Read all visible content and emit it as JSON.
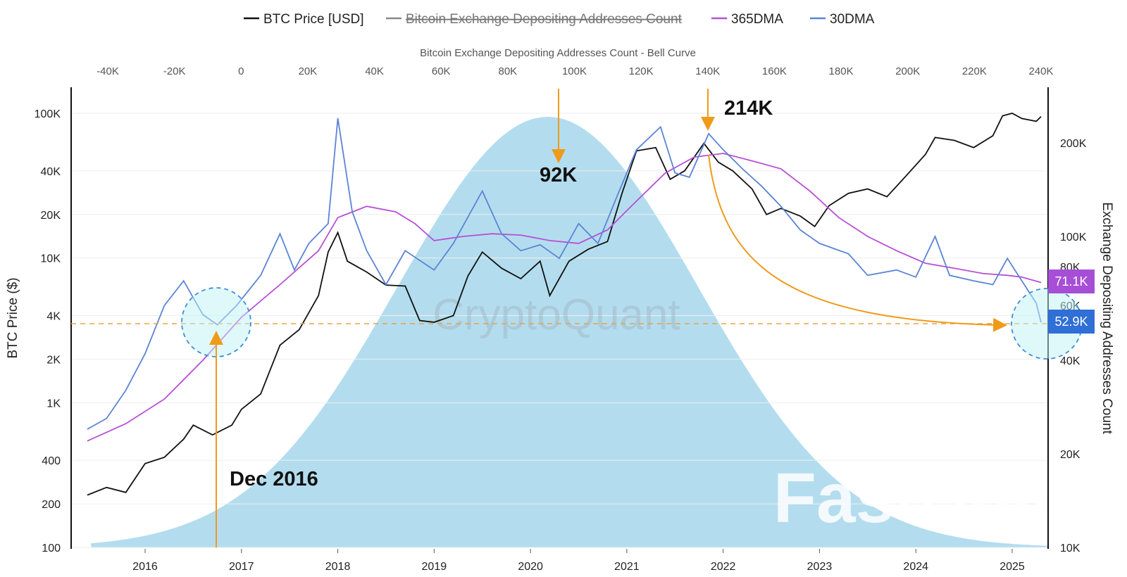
{
  "legend": [
    {
      "label": "BTC Price [USD]",
      "color": "#111111",
      "struck": false
    },
    {
      "label": "Bitcoin Exchange Depositing Addresses Count",
      "color": "#888888",
      "struck": true
    },
    {
      "label": "365DMA",
      "color": "#b84fd6",
      "struck": false
    },
    {
      "label": "30DMA",
      "color": "#5b84d6",
      "struck": false
    }
  ],
  "top_axis_title": "Bitcoin Exchange Depositing Addresses Count - Bell Curve",
  "top_ticks": [
    "-40K",
    "-20K",
    "0",
    "20K",
    "40K",
    "60K",
    "80K",
    "100K",
    "120K",
    "140K",
    "160K",
    "180K",
    "200K",
    "220K",
    "240K"
  ],
  "left_axis_title": "BTC Price ($)",
  "right_axis_title": "Exchange Depositing Addresses Count",
  "left_ticks": [
    "100K",
    "40K",
    "20K",
    "10K",
    "4K",
    "2K",
    "1K",
    "400",
    "200",
    "100"
  ],
  "right_ticks": [
    "200K",
    "100K",
    "80K",
    "60K",
    "40K",
    "20K",
    "10K"
  ],
  "bottom_ticks": [
    "2016",
    "2017",
    "2018",
    "2019",
    "2020",
    "2021",
    "2022",
    "2023",
    "2024",
    "2025"
  ],
  "annotations": {
    "peak_2021": "214K",
    "peak_mid": "92K",
    "dec_2016": "Dec 2016"
  },
  "badges": {
    "dma365": {
      "text": "71.1K",
      "color": "#a64fd6"
    },
    "dma30": {
      "text": "52.9K",
      "color": "#2f6fd6"
    }
  },
  "watermarks": {
    "center": "CryptoQuant",
    "corner": "FastBull"
  },
  "chart_data": {
    "type": "line",
    "x_range": [
      2015.35,
      2025.3
    ],
    "y_left_scale": "log",
    "y_left_range": [
      100,
      120000
    ],
    "y_right_scale": "log",
    "y_right_range": [
      10000,
      250000
    ],
    "grid": true,
    "legend_position": "top",
    "series": [
      {
        "name": "BTC Price [USD]",
        "axis": "left",
        "color": "#111111",
        "points": [
          [
            2015.4,
            230
          ],
          [
            2015.6,
            260
          ],
          [
            2015.8,
            240
          ],
          [
            2016.0,
            380
          ],
          [
            2016.2,
            420
          ],
          [
            2016.4,
            560
          ],
          [
            2016.5,
            700
          ],
          [
            2016.7,
            600
          ],
          [
            2016.9,
            700
          ],
          [
            2017.0,
            900
          ],
          [
            2017.2,
            1150
          ],
          [
            2017.4,
            2500
          ],
          [
            2017.6,
            3200
          ],
          [
            2017.8,
            5500
          ],
          [
            2017.9,
            11000
          ],
          [
            2018.0,
            15000
          ],
          [
            2018.1,
            9500
          ],
          [
            2018.3,
            8000
          ],
          [
            2018.5,
            6500
          ],
          [
            2018.7,
            6400
          ],
          [
            2018.85,
            3700
          ],
          [
            2019.0,
            3600
          ],
          [
            2019.2,
            4000
          ],
          [
            2019.35,
            7500
          ],
          [
            2019.5,
            11000
          ],
          [
            2019.7,
            8500
          ],
          [
            2019.9,
            7200
          ],
          [
            2020.1,
            9500
          ],
          [
            2020.2,
            5500
          ],
          [
            2020.4,
            9500
          ],
          [
            2020.6,
            11500
          ],
          [
            2020.8,
            13000
          ],
          [
            2020.95,
            28000
          ],
          [
            2021.1,
            55000
          ],
          [
            2021.3,
            58000
          ],
          [
            2021.45,
            35000
          ],
          [
            2021.6,
            40000
          ],
          [
            2021.8,
            62000
          ],
          [
            2021.95,
            46000
          ],
          [
            2022.1,
            40000
          ],
          [
            2022.3,
            30000
          ],
          [
            2022.45,
            20000
          ],
          [
            2022.6,
            22000
          ],
          [
            2022.8,
            19500
          ],
          [
            2022.95,
            16500
          ],
          [
            2023.1,
            23000
          ],
          [
            2023.3,
            28000
          ],
          [
            2023.5,
            30000
          ],
          [
            2023.7,
            26500
          ],
          [
            2023.9,
            37000
          ],
          [
            2024.1,
            52000
          ],
          [
            2024.2,
            68000
          ],
          [
            2024.4,
            65000
          ],
          [
            2024.6,
            58000
          ],
          [
            2024.8,
            70000
          ],
          [
            2024.9,
            96000
          ],
          [
            2025.0,
            100000
          ],
          [
            2025.1,
            92000
          ],
          [
            2025.25,
            88000
          ],
          [
            2025.3,
            95000
          ]
        ]
      },
      {
        "name": "365DMA",
        "axis": "right",
        "color": "#b84fd6",
        "points": [
          [
            2015.4,
            22000
          ],
          [
            2015.8,
            25000
          ],
          [
            2016.2,
            30000
          ],
          [
            2016.6,
            40000
          ],
          [
            2017.0,
            55000
          ],
          [
            2017.4,
            70000
          ],
          [
            2017.8,
            90000
          ],
          [
            2018.0,
            115000
          ],
          [
            2018.3,
            125000
          ],
          [
            2018.6,
            120000
          ],
          [
            2018.8,
            110000
          ],
          [
            2019.0,
            97000
          ],
          [
            2019.3,
            100000
          ],
          [
            2019.6,
            102000
          ],
          [
            2019.9,
            101000
          ],
          [
            2020.2,
            97000
          ],
          [
            2020.5,
            95000
          ],
          [
            2020.8,
            105000
          ],
          [
            2021.1,
            130000
          ],
          [
            2021.4,
            160000
          ],
          [
            2021.7,
            180000
          ],
          [
            2022.0,
            185000
          ],
          [
            2022.3,
            175000
          ],
          [
            2022.6,
            165000
          ],
          [
            2022.9,
            140000
          ],
          [
            2023.2,
            115000
          ],
          [
            2023.5,
            100000
          ],
          [
            2023.8,
            90000
          ],
          [
            2024.1,
            82000
          ],
          [
            2024.4,
            79000
          ],
          [
            2024.7,
            76000
          ],
          [
            2024.95,
            75000
          ],
          [
            2025.1,
            74000
          ],
          [
            2025.3,
            71100
          ]
        ]
      },
      {
        "name": "30DMA",
        "axis": "right",
        "color": "#5b84d6",
        "points": [
          [
            2015.4,
            24000
          ],
          [
            2015.6,
            26000
          ],
          [
            2015.8,
            32000
          ],
          [
            2016.0,
            42000
          ],
          [
            2016.2,
            60000
          ],
          [
            2016.4,
            72000
          ],
          [
            2016.6,
            56000
          ],
          [
            2016.75,
            52000
          ],
          [
            2016.95,
            60000
          ],
          [
            2017.2,
            75000
          ],
          [
            2017.4,
            102000
          ],
          [
            2017.55,
            78000
          ],
          [
            2017.7,
            95000
          ],
          [
            2017.9,
            110000
          ],
          [
            2018.0,
            240000
          ],
          [
            2018.15,
            120000
          ],
          [
            2018.3,
            90000
          ],
          [
            2018.5,
            70000
          ],
          [
            2018.7,
            90000
          ],
          [
            2019.0,
            78000
          ],
          [
            2019.2,
            95000
          ],
          [
            2019.5,
            140000
          ],
          [
            2019.7,
            102000
          ],
          [
            2019.9,
            90000
          ],
          [
            2020.1,
            94000
          ],
          [
            2020.3,
            85000
          ],
          [
            2020.5,
            110000
          ],
          [
            2020.7,
            95000
          ],
          [
            2020.9,
            135000
          ],
          [
            2021.1,
            190000
          ],
          [
            2021.35,
            225000
          ],
          [
            2021.5,
            160000
          ],
          [
            2021.65,
            155000
          ],
          [
            2021.85,
            214000
          ],
          [
            2022.0,
            190000
          ],
          [
            2022.2,
            165000
          ],
          [
            2022.4,
            145000
          ],
          [
            2022.6,
            125000
          ],
          [
            2022.8,
            105000
          ],
          [
            2023.0,
            95000
          ],
          [
            2023.3,
            88000
          ],
          [
            2023.5,
            75000
          ],
          [
            2023.8,
            78000
          ],
          [
            2024.0,
            74000
          ],
          [
            2024.2,
            100000
          ],
          [
            2024.35,
            75000
          ],
          [
            2024.6,
            72000
          ],
          [
            2024.8,
            70000
          ],
          [
            2024.95,
            85000
          ],
          [
            2025.1,
            72000
          ],
          [
            2025.25,
            61000
          ],
          [
            2025.3,
            52900
          ]
        ]
      },
      {
        "name": "Bitcoin Exchange Depositing Addresses Count - Bell Curve",
        "type": "area",
        "axis": "top",
        "color": "#b3ddee",
        "mean": 92000,
        "std": 45000,
        "x_range": [
          -45000,
          242000
        ]
      }
    ]
  }
}
